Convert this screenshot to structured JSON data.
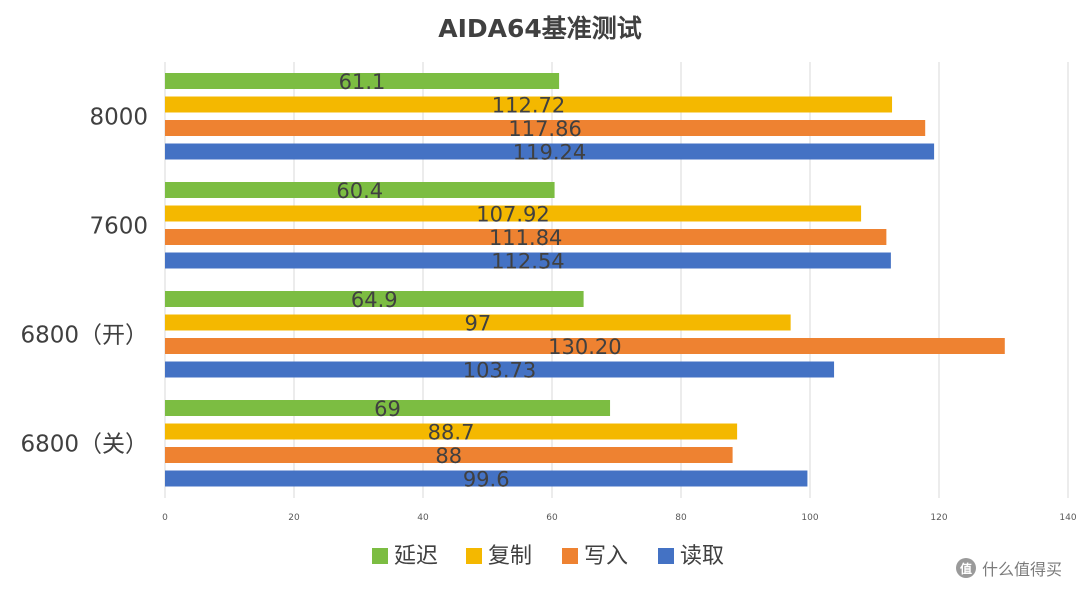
{
  "chart_data": {
    "type": "bar",
    "orientation": "horizontal",
    "title": "AIDA64基准测试",
    "categories": [
      "8000",
      "7600",
      "6800（开）",
      "6800（关）"
    ],
    "series": [
      {
        "name": "延迟",
        "color": "#7cbd42",
        "values": [
          61.1,
          60.4,
          64.9,
          69
        ],
        "labels": [
          "61.1",
          "60.4",
          "64.9",
          "69"
        ]
      },
      {
        "name": "复制",
        "color": "#f4b800",
        "values": [
          112.72,
          107.92,
          97,
          88.7
        ],
        "labels": [
          "112.72",
          "107.92",
          "97",
          "88.7"
        ]
      },
      {
        "name": "写入",
        "color": "#ee8231",
        "values": [
          117.86,
          111.84,
          130.2,
          88
        ],
        "labels": [
          "117.86",
          "111.84",
          "130.20",
          "88"
        ]
      },
      {
        "name": "读取",
        "color": "#4472c4",
        "values": [
          119.24,
          112.54,
          103.73,
          99.6
        ],
        "labels": [
          "119.24",
          "112.54",
          "103.73",
          "99.6"
        ]
      }
    ],
    "xlim": [
      0,
      140
    ],
    "xticks": [
      0,
      20,
      40,
      60,
      80,
      100,
      120,
      140
    ],
    "grid": true,
    "legend": "bottom"
  },
  "watermark": {
    "logo": "值",
    "text": "什么值得买"
  }
}
